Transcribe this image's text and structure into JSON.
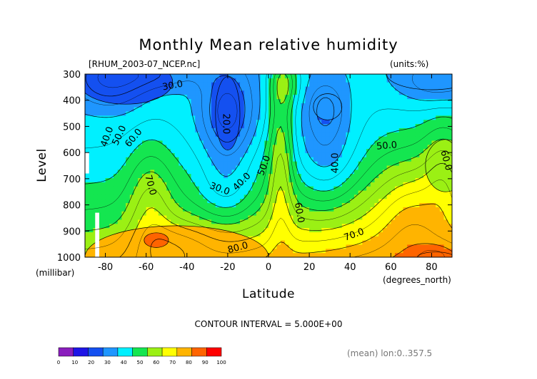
{
  "chart_data": {
    "type": "contour",
    "title": "Monthly Mean relative humidity",
    "file_label": "[RHUM_2003-07_NCEP.nc]",
    "units_label": "(units:%)",
    "xlabel": "Latitude",
    "x_units": "(degrees_north)",
    "ylabel": "Level",
    "y_units": "(millibar)",
    "xlim": [
      -90,
      90
    ],
    "ylim": [
      1000,
      300
    ],
    "x_ticks": [
      "-80",
      "-60",
      "-40",
      "-20",
      "0",
      "20",
      "40",
      "60",
      "80"
    ],
    "y_ticks": [
      "300",
      "400",
      "500",
      "600",
      "700",
      "800",
      "900",
      "1000"
    ],
    "contour_interval_text": "CONTOUR INTERVAL = 5.000E+00",
    "footer_note": "(mean) lon:0..357.5",
    "colorbar": {
      "labels": [
        "0",
        "10",
        "20",
        "30",
        "40",
        "50",
        "60",
        "70",
        "80",
        "90",
        "100"
      ],
      "colors": [
        "#8a1ebd",
        "#1e14e6",
        "#1450f0",
        "#1f96ff",
        "#00f0ff",
        "#14e650",
        "#9bf014",
        "#ffff00",
        "#ffb400",
        "#ff6400",
        "#ff0000"
      ]
    },
    "contour_labels": [
      {
        "text": "30.0",
        "x": -47,
        "p": 345,
        "rot": -10
      },
      {
        "text": "40.0",
        "x": -79,
        "p": 540,
        "rot": -70
      },
      {
        "text": "50.0",
        "x": -73,
        "p": 535,
        "rot": -65
      },
      {
        "text": "60.0",
        "x": -66,
        "p": 545,
        "rot": -50
      },
      {
        "text": "70.0",
        "x": -58,
        "p": 725,
        "rot": 75
      },
      {
        "text": "20.0",
        "x": -21,
        "p": 490,
        "rot": 90
      },
      {
        "text": "30.0",
        "x": -24,
        "p": 740,
        "rot": 20
      },
      {
        "text": "40.0",
        "x": -13,
        "p": 712,
        "rot": -45
      },
      {
        "text": "50.0",
        "x": -2,
        "p": 650,
        "rot": -70
      },
      {
        "text": "60.0",
        "x": 15,
        "p": 830,
        "rot": 80
      },
      {
        "text": "40.0",
        "x": 33,
        "p": 640,
        "rot": -90
      },
      {
        "text": "50.0",
        "x": 58,
        "p": 575,
        "rot": -5
      },
      {
        "text": "60.0",
        "x": 87,
        "p": 630,
        "rot": 75
      },
      {
        "text": "70.0",
        "x": 42,
        "p": 915,
        "rot": -20
      },
      {
        "text": "80.0",
        "x": -15,
        "p": 965,
        "rot": -15
      }
    ],
    "fields": [
      {
        "value": 10,
        "cx": -78,
        "cp": 320,
        "rx": 14,
        "rp": 50
      },
      {
        "value": 20,
        "cx": -70,
        "cp": 330,
        "rx": 23,
        "rp": 85
      },
      {
        "value": 20,
        "cx": -20,
        "cp": 450,
        "rx": 6,
        "rp": 140
      },
      {
        "value": 30,
        "cx": 29,
        "cp": 425,
        "rx": 7,
        "rp": 50
      },
      {
        "value": 30,
        "cx": 80,
        "cp": 300,
        "rx": 22,
        "rp": 60
      },
      {
        "value": 60,
        "cx": 87,
        "cp": 650,
        "rx": 10,
        "rp": 100
      },
      {
        "value": 80,
        "cx": -45,
        "cp": 1000,
        "rx": 45,
        "rp": 120
      },
      {
        "value": 90,
        "cx": -55,
        "cp": 935,
        "rx": 6,
        "rp": 28
      },
      {
        "value": 90,
        "cx": 82,
        "cp": 1000,
        "rx": 9,
        "rp": 20
      }
    ]
  }
}
